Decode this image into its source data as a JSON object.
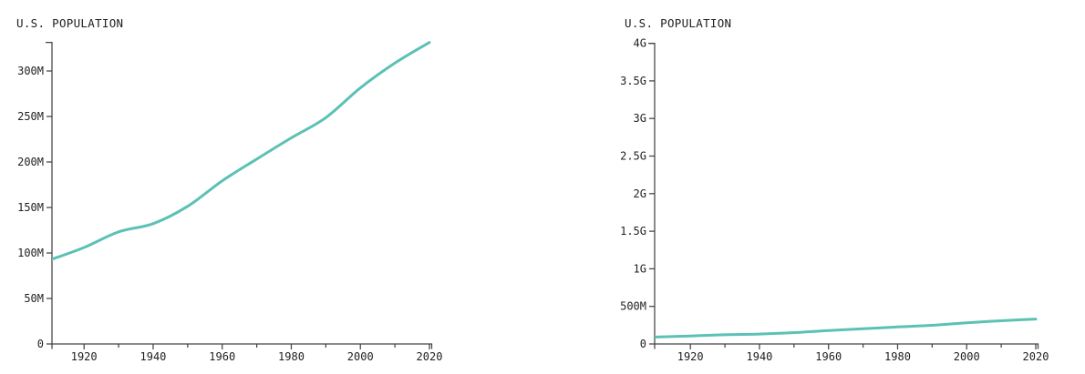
{
  "page": {
    "background": "#ffffff"
  },
  "chart_data": [
    {
      "type": "line",
      "title": "U.S. POPULATION",
      "series": [
        {
          "name": "U.S. population",
          "x": [
            1910,
            1920,
            1930,
            1940,
            1950,
            1960,
            1970,
            1980,
            1990,
            2000,
            2010,
            2020
          ],
          "values_millions": [
            92.2,
            106.0,
            123.2,
            132.2,
            151.3,
            179.3,
            203.2,
            226.5,
            248.7,
            281.4,
            308.7,
            331.4
          ]
        }
      ],
      "xlim": [
        1911,
        2020
      ],
      "ylim_millions": [
        0,
        331.4
      ],
      "x_ticks": [
        {
          "value": 1920,
          "label": "1920"
        },
        {
          "value": 1940,
          "label": "1940"
        },
        {
          "value": 1960,
          "label": "1960"
        },
        {
          "value": 1980,
          "label": "1980"
        },
        {
          "value": 2000,
          "label": "2000"
        },
        {
          "value": 2020,
          "label": "2020"
        }
      ],
      "x_minor_ticks": [
        1930,
        1950,
        1970,
        1990,
        2010
      ],
      "y_ticks": [
        {
          "value_millions": 0,
          "label": "0"
        },
        {
          "value_millions": 50,
          "label": "50M"
        },
        {
          "value_millions": 100,
          "label": "100M"
        },
        {
          "value_millions": 150,
          "label": "150M"
        },
        {
          "value_millions": 200,
          "label": "200M"
        },
        {
          "value_millions": 250,
          "label": "250M"
        },
        {
          "value_millions": 300,
          "label": "300M"
        }
      ],
      "grid": false,
      "legend": null,
      "line_color": "#5cc1b5",
      "axis_color": "#444444",
      "text_color": "#1f1f1f"
    },
    {
      "type": "line",
      "title": "U.S. POPULATION",
      "series": [
        {
          "name": "U.S. population",
          "x": [
            1910,
            1920,
            1930,
            1940,
            1950,
            1960,
            1970,
            1980,
            1990,
            2000,
            2010,
            2020
          ],
          "values_millions": [
            92.2,
            106.0,
            123.2,
            132.2,
            151.3,
            179.3,
            203.2,
            226.5,
            248.7,
            281.4,
            308.7,
            331.4
          ]
        }
      ],
      "xlim": [
        1911,
        2020
      ],
      "ylim_millions": [
        0,
        4000
      ],
      "x_ticks": [
        {
          "value": 1920,
          "label": "1920"
        },
        {
          "value": 1940,
          "label": "1940"
        },
        {
          "value": 1960,
          "label": "1960"
        },
        {
          "value": 1980,
          "label": "1980"
        },
        {
          "value": 2000,
          "label": "2000"
        },
        {
          "value": 2020,
          "label": "2020"
        }
      ],
      "x_minor_ticks": [
        1930,
        1950,
        1970,
        1990,
        2010
      ],
      "y_ticks": [
        {
          "value_millions": 0,
          "label": "0"
        },
        {
          "value_millions": 500,
          "label": "500M"
        },
        {
          "value_millions": 1000,
          "label": "1G"
        },
        {
          "value_millions": 1500,
          "label": "1.5G"
        },
        {
          "value_millions": 2000,
          "label": "2G"
        },
        {
          "value_millions": 2500,
          "label": "2.5G"
        },
        {
          "value_millions": 3000,
          "label": "3G"
        },
        {
          "value_millions": 3500,
          "label": "3.5G"
        },
        {
          "value_millions": 4000,
          "label": "4G"
        }
      ],
      "grid": false,
      "legend": null,
      "line_color": "#5cc1b5",
      "axis_color": "#444444",
      "text_color": "#1f1f1f"
    }
  ]
}
